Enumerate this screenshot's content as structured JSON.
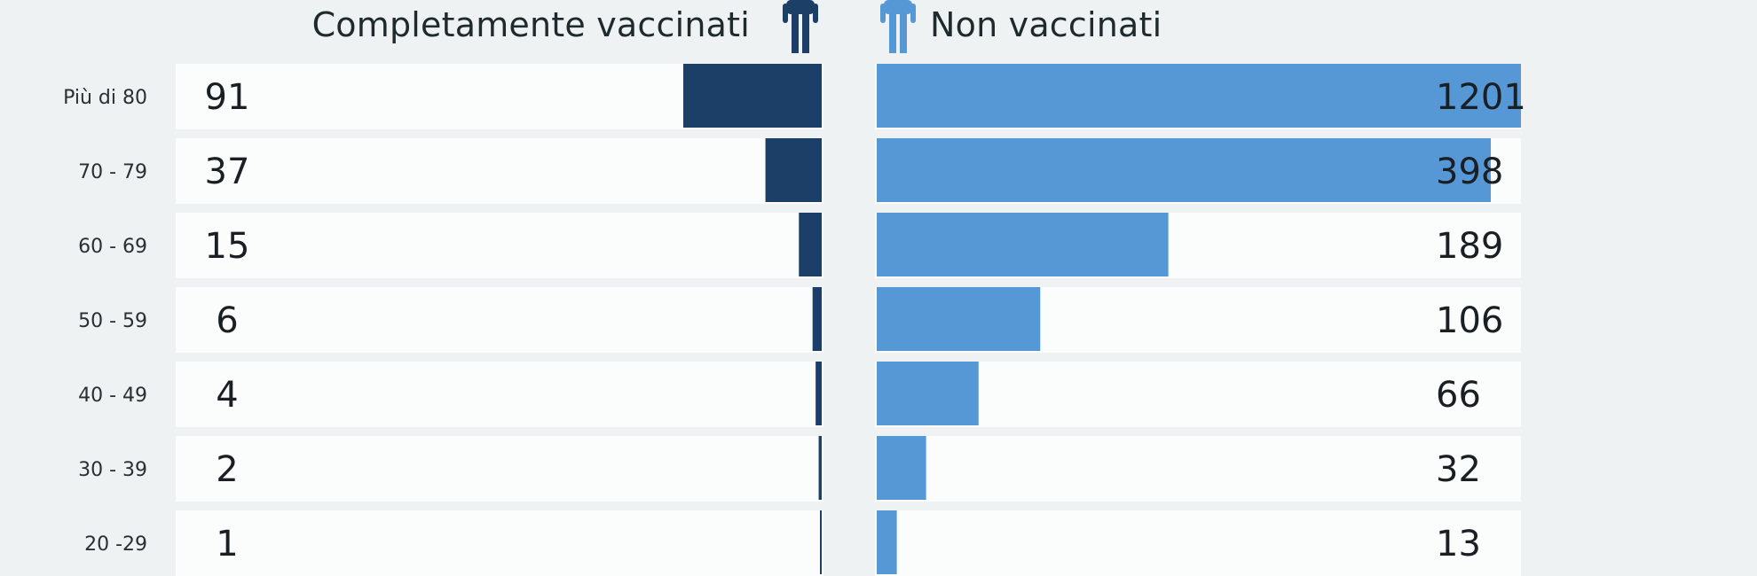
{
  "colors": {
    "vaccinated": "#1b3f66",
    "unvaccinated": "#5698d6",
    "row_bg": "#fbfcfc",
    "background": "#eef2f2",
    "label_text": "#2a2f33",
    "value_text": "#1a1f24"
  },
  "headers": {
    "left": "Completamente vaccinati",
    "right": "Non vaccinati"
  },
  "icons": {
    "left": "person-icon",
    "right": "person-icon"
  },
  "chart_data": {
    "type": "bar",
    "orientation": "horizontal-butterfly",
    "categories": [
      "Più di 80",
      "70 - 79",
      "60 - 69",
      "50 - 59",
      "40 - 49",
      "30 - 39",
      "20 -29"
    ],
    "series": [
      {
        "name": "Completamente vaccinati",
        "values": [
          91,
          37,
          15,
          6,
          4,
          2,
          1
        ]
      },
      {
        "name": "Non vaccinati",
        "values": [
          1201,
          398,
          189,
          106,
          66,
          32,
          13
        ]
      }
    ],
    "value_labels": {
      "left": [
        "91",
        "37",
        "15",
        "6",
        "4",
        "2",
        "1"
      ],
      "right": [
        "1201",
        "398",
        "189",
        "106",
        "66",
        "32",
        "13"
      ]
    },
    "title": "",
    "xlabel": "",
    "ylabel": "",
    "grid": false,
    "legend": "top"
  }
}
